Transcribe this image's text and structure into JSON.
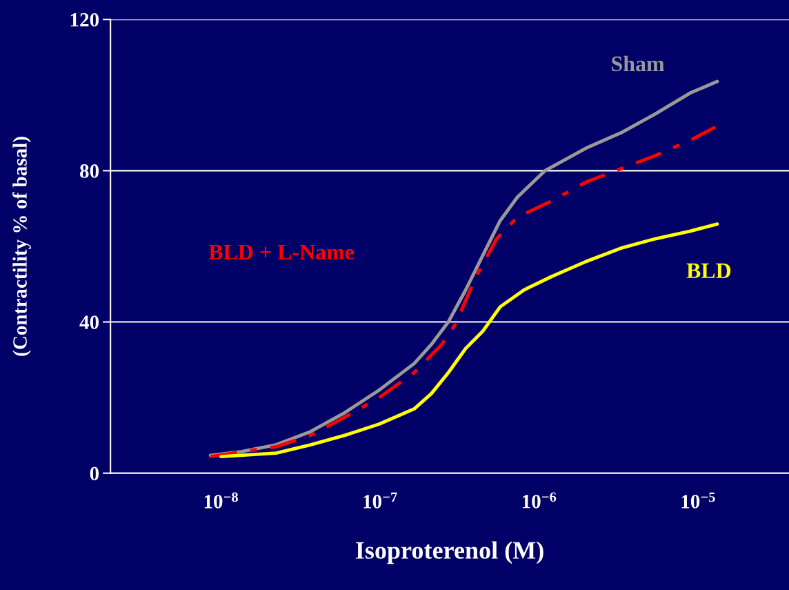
{
  "chart_data": {
    "type": "line",
    "xlabel": "Isoproterenol (M)",
    "ylabel": "(Contractility % of basal)",
    "log": "x",
    "xlim": [
      2.02e-09,
      3.73e-05
    ],
    "ylim": [
      0,
      120
    ],
    "xticks": [
      {
        "value": 1e-08,
        "label": "10$^{−8}$"
      },
      {
        "value": 1e-07,
        "label": "10$^{−7}$"
      },
      {
        "value": 1e-06,
        "label": "10$^{−6}$"
      },
      {
        "value": 1e-05,
        "label": "10$^{−5}$"
      }
    ],
    "yticks": [
      0,
      40,
      80,
      120
    ],
    "grid": "y",
    "legend": false,
    "series": [
      {
        "name": "Sham",
        "color": "#999999",
        "line_style": "solid",
        "x": [
          8.6e-09,
          1.35e-08,
          2.22e-08,
          3.66e-08,
          6e-08,
          9.9e-08,
          1.64e-07,
          2.1e-07,
          2.69e-07,
          3.46e-07,
          4.44e-07,
          5.7e-07,
          7.31e-07,
          1.09e-06,
          1.98e-06,
          3.27e-06,
          5.38e-06,
          8.87e-06,
          1.32e-05
        ],
        "values": [
          4.7,
          5.7,
          7.5,
          11,
          16,
          22,
          29,
          34,
          40,
          48.5,
          57.7,
          66.8,
          73,
          80,
          86,
          90,
          95,
          100.5,
          103.6
        ]
      },
      {
        "name": "BLD + L-Name",
        "color": "#ff0000",
        "line_style": "dashdot",
        "x": [
          8.6e-09,
          2.22e-08,
          3.66e-08,
          6e-08,
          9.9e-08,
          1.64e-07,
          2.44e-07,
          2.98e-07,
          4.02e-07,
          5.42e-07,
          7.31e-07,
          1.2e-06,
          1.98e-06,
          3.27e-06,
          5.38e-06,
          8.87e-06,
          1.32e-05
        ],
        "values": [
          4.4,
          7,
          10,
          14.8,
          20,
          26.6,
          34,
          39.4,
          52,
          62,
          67.7,
          72,
          77,
          80.5,
          84,
          88,
          91.8
        ]
      },
      {
        "name": "BLD",
        "color": "#ffff00",
        "line_style": "solid",
        "x": [
          1e-08,
          2.22e-08,
          3.66e-08,
          6e-08,
          9.9e-08,
          1.64e-07,
          2.1e-07,
          2.69e-07,
          3.46e-07,
          4.44e-07,
          5.7e-07,
          8.07e-07,
          1.2e-06,
          1.98e-06,
          3.27e-06,
          5.38e-06,
          8.87e-06,
          1.32e-05
        ],
        "values": [
          4.4,
          5.3,
          7.5,
          10,
          13,
          17,
          21,
          26.6,
          33,
          37.6,
          44,
          48.5,
          52,
          56,
          59.5,
          62,
          64,
          65.9
        ]
      }
    ]
  }
}
